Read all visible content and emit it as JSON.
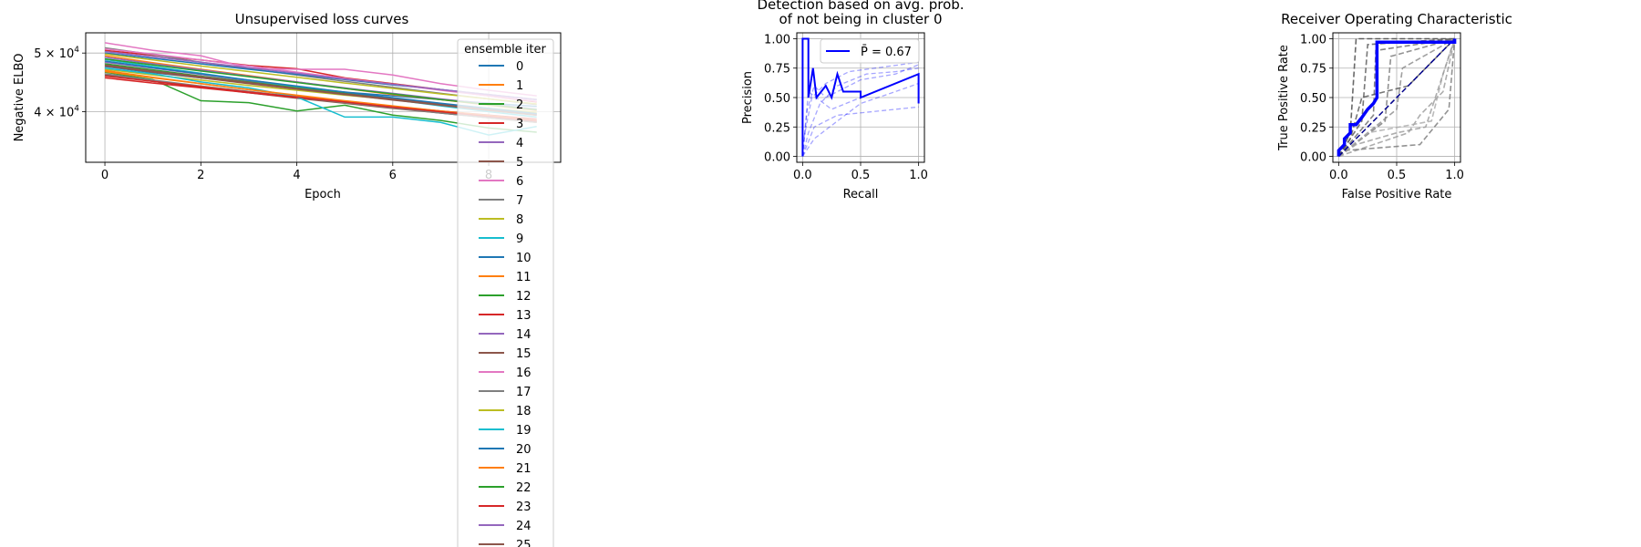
{
  "chart_data": [
    {
      "type": "line",
      "title": "Unsupervised loss curves",
      "xlabel": "Epoch",
      "ylabel": "Negative ELBO",
      "xlim": [
        -0.4,
        9.5
      ],
      "ylim": [
        33000,
        54000
      ],
      "y_scale": "log",
      "xticks": [
        0,
        2,
        4,
        6,
        8
      ],
      "xtick_labels": [
        "0",
        "2",
        "4",
        "6",
        "8"
      ],
      "yticks": [
        40000,
        50000
      ],
      "ytick_labels": [
        {
          "base": "4 × 10",
          "exp": "4"
        },
        {
          "base": "5 × 10",
          "exp": "4"
        }
      ],
      "grid": true,
      "legend": {
        "title": "ensemble iter",
        "placement": "right (extends below plot)"
      },
      "x": [
        0,
        1,
        2,
        3,
        4,
        5,
        6,
        7,
        8,
        9
      ],
      "series": [
        {
          "name": "0",
          "color": "#1f77b4",
          "values": [
            47500,
            46400,
            45500,
            44700,
            43900,
            43100,
            42500,
            41900,
            41300,
            40800
          ]
        },
        {
          "name": "1",
          "color": "#ff7f0e",
          "values": [
            49500,
            48200,
            47000,
            45900,
            44800,
            43700,
            42700,
            41900,
            41000,
            40200
          ]
        },
        {
          "name": "2",
          "color": "#2ca02c",
          "values": [
            46500,
            45200,
            41700,
            41400,
            40100,
            41000,
            39500,
            38700,
            37600,
            37000
          ]
        },
        {
          "name": "3",
          "color": "#d62728",
          "values": [
            50500,
            49600,
            48700,
            47700,
            47100,
            45500,
            44500,
            43500,
            42500,
            41500
          ]
        },
        {
          "name": "4",
          "color": "#9467bd",
          "values": [
            48300,
            47200,
            46100,
            45000,
            44000,
            43000,
            42000,
            41100,
            40300,
            39500
          ]
        },
        {
          "name": "5",
          "color": "#8c564b",
          "values": [
            46000,
            44900,
            43900,
            43000,
            42100,
            41300,
            40500,
            39800,
            39100,
            38500
          ]
        },
        {
          "name": "6",
          "color": "#e377c2",
          "values": [
            52000,
            50500,
            49500,
            47200,
            47000,
            47000,
            46000,
            44500,
            43400,
            42500
          ]
        },
        {
          "name": "7",
          "color": "#7f7f7f",
          "values": [
            51000,
            49700,
            48300,
            47100,
            46000,
            44900,
            43900,
            42900,
            42000,
            41100
          ]
        },
        {
          "name": "8",
          "color": "#bcbd22",
          "values": [
            47000,
            46000,
            45100,
            44200,
            43400,
            42600,
            41900,
            41200,
            40500,
            39900
          ]
        },
        {
          "name": "9",
          "color": "#17becf",
          "values": [
            48800,
            47500,
            46300,
            45100,
            44000,
            42900,
            41900,
            40900,
            40000,
            39200
          ]
        },
        {
          "name": "10",
          "color": "#1f77b4",
          "values": [
            50000,
            49000,
            48000,
            47000,
            46100,
            45200,
            44300,
            43500,
            42700,
            41900
          ]
        },
        {
          "name": "11",
          "color": "#ff7f0e",
          "values": [
            46800,
            45600,
            44500,
            43500,
            42500,
            41600,
            40700,
            39900,
            39100,
            38400
          ]
        },
        {
          "name": "12",
          "color": "#2ca02c",
          "values": [
            48000,
            46900,
            45800,
            44800,
            43800,
            42900,
            42000,
            41200,
            40400,
            39600
          ]
        },
        {
          "name": "13",
          "color": "#d62728",
          "values": [
            45500,
            44600,
            43800,
            43000,
            42200,
            41500,
            40800,
            40100,
            39500,
            38900
          ]
        },
        {
          "name": "14",
          "color": "#9467bd",
          "values": [
            49200,
            48000,
            46900,
            45800,
            44800,
            43800,
            42900,
            42000,
            41200,
            40400
          ]
        },
        {
          "name": "15",
          "color": "#8c564b",
          "values": [
            47800,
            46700,
            45700,
            44700,
            43700,
            42800,
            42000,
            41200,
            40400,
            39700
          ]
        },
        {
          "name": "16",
          "color": "#e377c2",
          "values": [
            50800,
            49800,
            48700,
            47600,
            46500,
            45400,
            44400,
            43400,
            42500,
            41600
          ]
        },
        {
          "name": "17",
          "color": "#7f7f7f",
          "values": [
            46200,
            45100,
            44100,
            43200,
            42300,
            41400,
            40600,
            39800,
            39100,
            38400
          ]
        },
        {
          "name": "18",
          "color": "#bcbd22",
          "values": [
            49800,
            48700,
            47600,
            46600,
            45600,
            44600,
            43700,
            42800,
            42000,
            41200
          ]
        },
        {
          "name": "19",
          "color": "#17becf",
          "values": [
            47200,
            46200,
            44800,
            43800,
            42300,
            39200,
            39200,
            38400,
            36600,
            37800
          ]
        },
        {
          "name": "20",
          "color": "#1f77b4",
          "values": [
            48500,
            47300,
            46200,
            45100,
            44100,
            43100,
            42200,
            41300,
            40500,
            39700
          ]
        },
        {
          "name": "21",
          "color": "#ff7f0e",
          "values": [
            46600,
            45500,
            44500,
            43500,
            42600,
            41700,
            40900,
            40100,
            39400,
            38700
          ]
        },
        {
          "name": "22",
          "color": "#2ca02c",
          "values": [
            48900,
            47800,
            46700,
            45700,
            44700,
            43700,
            42800,
            41900,
            41100,
            40300
          ]
        },
        {
          "name": "23",
          "color": "#d62728",
          "values": [
            45800,
            44900,
            44000,
            43100,
            42300,
            41500,
            40700,
            40000,
            39300,
            38600
          ]
        },
        {
          "name": "24",
          "color": "#9467bd",
          "values": [
            50300,
            49300,
            48300,
            47300,
            46300,
            45300,
            44400,
            43500,
            42700,
            41900
          ]
        },
        {
          "name": "25",
          "color": "#8c564b",
          "values": [
            47600,
            46500,
            45500,
            44500,
            43600,
            42700,
            41800,
            41000,
            40200,
            39500
          ]
        }
      ]
    },
    {
      "type": "line",
      "title": "Detection based on avg. prob.",
      "subtitle": "of not being in cluster 0",
      "xlabel": "Recall",
      "ylabel": "Precision",
      "xlim": [
        -0.05,
        1.05
      ],
      "ylim": [
        -0.05,
        1.05
      ],
      "xticks": [
        0,
        0.5,
        1
      ],
      "xtick_labels": [
        "0.0",
        "0.5",
        "1.0"
      ],
      "yticks": [
        0,
        0.25,
        0.5,
        0.75,
        1
      ],
      "ytick_labels": [
        "0.00",
        "0.25",
        "0.50",
        "0.75",
        "1.00"
      ],
      "grid": true,
      "legend": {
        "placement": "upper right",
        "label": "P̄ = 0.67"
      },
      "main_curve": {
        "color": "#0000ff",
        "points": [
          [
            0,
            0
          ],
          [
            0,
            1
          ],
          [
            0.05,
            1
          ],
          [
            0.05,
            0.5
          ],
          [
            0.09,
            0.75
          ],
          [
            0.12,
            0.5
          ],
          [
            0.2,
            0.6
          ],
          [
            0.25,
            0.5
          ],
          [
            0.3,
            0.7
          ],
          [
            0.35,
            0.55
          ],
          [
            0.5,
            0.55
          ],
          [
            0.5,
            0.5
          ],
          [
            1,
            0.7
          ],
          [
            1,
            0.45
          ]
        ]
      },
      "ensemble_curves": [
        {
          "color": "#0000ff",
          "points": [
            [
              0,
              0
            ],
            [
              0.04,
              0.4
            ],
            [
              0.1,
              0.6
            ],
            [
              0.2,
              0.5
            ],
            [
              0.5,
              0.65
            ],
            [
              0.8,
              0.7
            ],
            [
              1,
              0.78
            ]
          ]
        },
        {
          "color": "#0000ff",
          "points": [
            [
              0,
              0
            ],
            [
              0.05,
              0.2
            ],
            [
              0.15,
              0.45
            ],
            [
              0.3,
              0.6
            ],
            [
              0.55,
              0.7
            ],
            [
              0.8,
              0.72
            ],
            [
              1,
              0.75
            ]
          ]
        },
        {
          "color": "#0000ff",
          "points": [
            [
              0,
              0.1
            ],
            [
              0.08,
              0.5
            ],
            [
              0.2,
              0.62
            ],
            [
              0.4,
              0.72
            ],
            [
              0.7,
              0.76
            ],
            [
              1,
              0.8
            ]
          ]
        },
        {
          "color": "#0000ff",
          "points": [
            [
              0,
              0
            ],
            [
              0.1,
              0.15
            ],
            [
              0.3,
              0.3
            ],
            [
              0.5,
              0.45
            ],
            [
              0.8,
              0.55
            ],
            [
              1,
              0.62
            ]
          ]
        },
        {
          "color": "#0000ff",
          "points": [
            [
              0,
              0
            ],
            [
              0.05,
              0.55
            ],
            [
              0.25,
              0.4
            ],
            [
              0.5,
              0.5
            ],
            [
              0.75,
              0.6
            ],
            [
              1,
              0.7
            ]
          ]
        },
        {
          "color": "#0000ff",
          "points": [
            [
              0,
              0
            ],
            [
              0.1,
              0.25
            ],
            [
              0.3,
              0.35
            ],
            [
              0.6,
              0.38
            ],
            [
              1,
              0.42
            ]
          ]
        }
      ]
    },
    {
      "type": "line",
      "title": "Receiver Operating Characteristic",
      "xlabel": "False Positive Rate",
      "ylabel": "True Positive Rate",
      "xlim": [
        -0.05,
        1.05
      ],
      "ylim": [
        -0.05,
        1.05
      ],
      "xticks": [
        0,
        0.5,
        1
      ],
      "xtick_labels": [
        "0.0",
        "0.5",
        "1.0"
      ],
      "yticks": [
        0,
        0.25,
        0.5,
        0.75,
        1
      ],
      "ytick_labels": [
        "0.00",
        "0.25",
        "0.50",
        "0.75",
        "1.00"
      ],
      "grid": true,
      "main_curve": {
        "color": "#0000ff",
        "points": [
          [
            0,
            0
          ],
          [
            0,
            0.05
          ],
          [
            0.05,
            0.1
          ],
          [
            0.05,
            0.15
          ],
          [
            0.1,
            0.2
          ],
          [
            0.1,
            0.27
          ],
          [
            0.15,
            0.27
          ],
          [
            0.2,
            0.33
          ],
          [
            0.25,
            0.4
          ],
          [
            0.3,
            0.45
          ],
          [
            0.33,
            0.5
          ],
          [
            0.33,
            0.97
          ],
          [
            1,
            0.97
          ],
          [
            1,
            1
          ]
        ]
      },
      "diagonal": {
        "color": "#00008b",
        "points": [
          [
            0,
            0
          ],
          [
            1,
            1
          ]
        ]
      },
      "ensemble_curves": [
        {
          "color": "#444444",
          "points": [
            [
              0,
              0
            ],
            [
              0.1,
              0.2
            ],
            [
              0.15,
              1
            ],
            [
              1,
              1
            ]
          ]
        },
        {
          "color": "#555555",
          "points": [
            [
              0,
              0
            ],
            [
              0.2,
              0.3
            ],
            [
              0.25,
              0.95
            ],
            [
              1,
              1
            ]
          ]
        },
        {
          "color": "#666666",
          "points": [
            [
              0,
              0
            ],
            [
              0.3,
              0.35
            ],
            [
              0.32,
              0.9
            ],
            [
              1,
              1
            ]
          ]
        },
        {
          "color": "#777777",
          "points": [
            [
              0,
              0
            ],
            [
              0.4,
              0.3
            ],
            [
              0.45,
              0.85
            ],
            [
              1,
              1
            ]
          ]
        },
        {
          "color": "#888888",
          "points": [
            [
              0,
              0
            ],
            [
              0.5,
              0.4
            ],
            [
              0.55,
              0.75
            ],
            [
              1,
              1
            ]
          ]
        },
        {
          "color": "#999999",
          "points": [
            [
              0,
              0
            ],
            [
              0.6,
              0.2
            ],
            [
              0.7,
              0.35
            ],
            [
              0.9,
              0.55
            ],
            [
              1,
              1
            ]
          ]
        },
        {
          "color": "#aaaaaa",
          "points": [
            [
              0,
              0
            ],
            [
              0.25,
              0.2
            ],
            [
              0.8,
              0.3
            ],
            [
              0.9,
              0.7
            ],
            [
              1,
              1
            ]
          ]
        },
        {
          "color": "#777777",
          "points": [
            [
              0,
              0
            ],
            [
              0.05,
              0.05
            ],
            [
              0.7,
              0.1
            ],
            [
              0.95,
              0.4
            ],
            [
              1,
              1
            ]
          ]
        },
        {
          "color": "#555555",
          "points": [
            [
              0,
              0
            ],
            [
              0.1,
              0.15
            ],
            [
              0.2,
              0.5
            ],
            [
              0.6,
              0.6
            ],
            [
              1,
              1
            ]
          ]
        },
        {
          "color": "#999999",
          "points": [
            [
              0,
              0
            ],
            [
              0.15,
              0.1
            ],
            [
              0.5,
              0.2
            ],
            [
              0.75,
              0.25
            ],
            [
              1,
              1
            ]
          ]
        }
      ]
    }
  ]
}
